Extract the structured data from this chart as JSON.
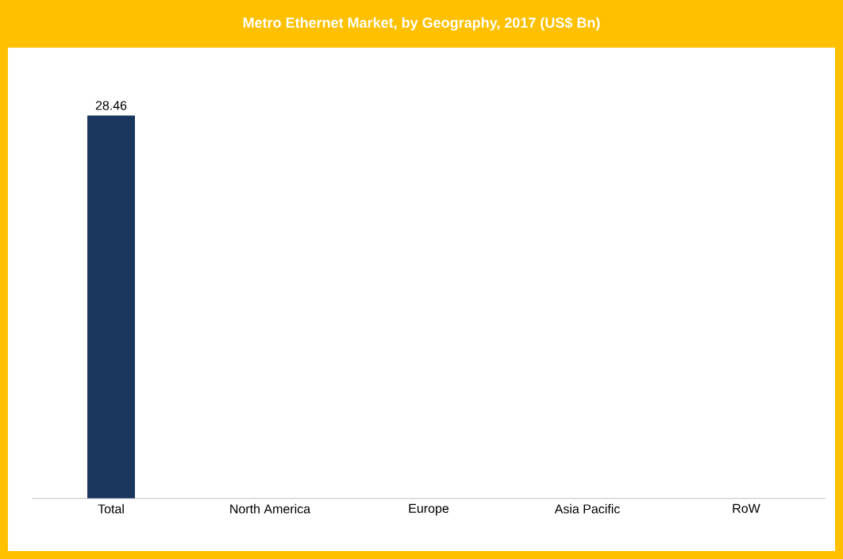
{
  "chart_data": {
    "type": "bar",
    "title": "Metro Ethernet Market, by Geography, 2017 (US$ Bn)",
    "categories": [
      "Total",
      "North America",
      "Europe",
      "Asia Pacific",
      "RoW"
    ],
    "values": [
      28.46,
      null,
      null,
      null,
      null
    ],
    "color": "#1b365d",
    "data_labels": true
  }
}
